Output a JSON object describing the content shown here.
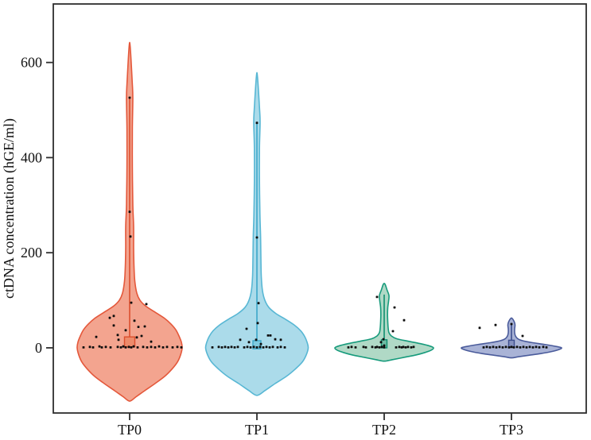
{
  "figure": {
    "background": "#ffffff",
    "frame_color": "#2e2e2e",
    "tick_color": "#2e2e2e",
    "text_color": "#111111"
  },
  "chart_data": {
    "type": "violin",
    "title": "",
    "xlabel": "",
    "ylabel": "ctDNA concentration (hGE/ml)",
    "yticks": [
      0,
      200,
      400,
      600
    ],
    "ylim": [
      -137,
      723
    ],
    "categories": [
      "TP0",
      "TP1",
      "TP2",
      "TP3"
    ],
    "grid": false,
    "legend": null,
    "point_color": "#0d0d0d",
    "groups": [
      {
        "label": "TP0",
        "edge_color": "#E4583B",
        "fill_color": "#F3A48F",
        "box": {
          "q1": 2,
          "q3": 23,
          "whisker_high": 526,
          "fill": "#ED8B6B",
          "edge": "#DC4F2E",
          "half_width": 6.5
        },
        "violin_profile": [
          [
            633,
            0.7
          ],
          [
            560,
            3.2
          ],
          [
            525,
            4.0
          ],
          [
            460,
            3.4
          ],
          [
            380,
            3.4
          ],
          [
            300,
            4.0
          ],
          [
            255,
            5.0
          ],
          [
            210,
            5.0
          ],
          [
            170,
            5.5
          ],
          [
            140,
            6.5
          ],
          [
            115,
            9.0
          ],
          [
            100,
            13.0
          ],
          [
            88,
            20.0
          ],
          [
            75,
            32.0
          ],
          [
            62,
            44.0
          ],
          [
            50,
            52.0
          ],
          [
            38,
            58.0
          ],
          [
            25,
            62.0
          ],
          [
            12,
            65.0
          ],
          [
            0,
            66.0
          ],
          [
            -15,
            64.0
          ],
          [
            -30,
            60.0
          ],
          [
            -45,
            53.0
          ],
          [
            -60,
            44.0
          ],
          [
            -75,
            32.0
          ],
          [
            -90,
            19.0
          ],
          [
            -103,
            8.0
          ],
          [
            -112,
            0.0
          ]
        ],
        "points": [
          [
            0,
            526
          ],
          [
            0,
            286
          ],
          [
            1,
            234
          ],
          [
            2,
            95
          ],
          [
            21,
            92
          ],
          [
            -20,
            67
          ],
          [
            -25,
            63
          ],
          [
            6,
            57
          ],
          [
            -20,
            47
          ],
          [
            19,
            45
          ],
          [
            11,
            44
          ],
          [
            -5,
            37
          ],
          [
            -15,
            27
          ],
          [
            15,
            25
          ],
          [
            -42,
            23
          ],
          [
            9,
            22
          ],
          [
            -14,
            17
          ],
          [
            27,
            13
          ],
          [
            -58,
            1
          ],
          [
            -50,
            2
          ],
          [
            -46,
            1
          ],
          [
            -38,
            3
          ],
          [
            -35,
            1
          ],
          [
            -30,
            2
          ],
          [
            -24,
            1
          ],
          [
            -15,
            2
          ],
          [
            -11,
            1
          ],
          [
            -8,
            3
          ],
          [
            -5,
            1
          ],
          [
            -1,
            2
          ],
          [
            2,
            1
          ],
          [
            5,
            3
          ],
          [
            10,
            1
          ],
          [
            17,
            2
          ],
          [
            22,
            1
          ],
          [
            27,
            2
          ],
          [
            32,
            1
          ],
          [
            37,
            3
          ],
          [
            42,
            1
          ],
          [
            47,
            2
          ],
          [
            54,
            1
          ],
          [
            60,
            2
          ],
          [
            65,
            1
          ]
        ]
      },
      {
        "label": "TP1",
        "edge_color": "#58B7D4",
        "fill_color": "#ABDBEA",
        "box": {
          "q1": -2,
          "q3": 15,
          "whisker_high": 473,
          "fill": "#7ECADF",
          "edge": "#3BA7C9",
          "half_width": 5
        },
        "violin_profile": [
          [
            570,
            0.7
          ],
          [
            500,
            3.4
          ],
          [
            473,
            4.0
          ],
          [
            420,
            3.2
          ],
          [
            350,
            3.2
          ],
          [
            280,
            3.8
          ],
          [
            235,
            4.6
          ],
          [
            190,
            5.0
          ],
          [
            150,
            5.5
          ],
          [
            120,
            7.0
          ],
          [
            100,
            10.0
          ],
          [
            85,
            15.0
          ],
          [
            72,
            24.0
          ],
          [
            60,
            36.0
          ],
          [
            48,
            47.0
          ],
          [
            36,
            55.0
          ],
          [
            24,
            60.0
          ],
          [
            12,
            63.0
          ],
          [
            0,
            64.5
          ],
          [
            -15,
            62.0
          ],
          [
            -30,
            57.0
          ],
          [
            -45,
            48.0
          ],
          [
            -60,
            37.0
          ],
          [
            -75,
            23.0
          ],
          [
            -90,
            10.0
          ],
          [
            -100,
            0.0
          ]
        ],
        "points": [
          [
            0,
            473
          ],
          [
            0,
            232
          ],
          [
            2,
            94
          ],
          [
            1,
            52
          ],
          [
            -13,
            40
          ],
          [
            14,
            26
          ],
          [
            17,
            26
          ],
          [
            23,
            18
          ],
          [
            30,
            17
          ],
          [
            -1,
            17
          ],
          [
            -21,
            17
          ],
          [
            -10,
            12
          ],
          [
            5,
            8
          ],
          [
            -56,
            1
          ],
          [
            -48,
            2
          ],
          [
            -44,
            1
          ],
          [
            -40,
            2
          ],
          [
            -36,
            1
          ],
          [
            -32,
            2
          ],
          [
            -28,
            1
          ],
          [
            -24,
            2
          ],
          [
            -16,
            1
          ],
          [
            -12,
            2
          ],
          [
            -8,
            1
          ],
          [
            -4,
            2
          ],
          [
            0,
            1
          ],
          [
            4,
            2
          ],
          [
            8,
            1
          ],
          [
            12,
            2
          ],
          [
            16,
            1
          ],
          [
            20,
            2
          ],
          [
            26,
            1
          ],
          [
            30,
            2
          ],
          [
            35,
            1
          ]
        ]
      },
      {
        "label": "TP2",
        "edge_color": "#179B7C",
        "fill_color": "#B0D9C6",
        "box": {
          "q1": 0,
          "q3": 17,
          "whisker_high": 112,
          "fill": "#6FBCA4",
          "edge": "#0F8F70",
          "half_width": 3.5
        },
        "violin_profile": [
          [
            134,
            1.0
          ],
          [
            122,
            3.5
          ],
          [
            110,
            6.0
          ],
          [
            98,
            5.5
          ],
          [
            85,
            4.5
          ],
          [
            70,
            4.2
          ],
          [
            55,
            4.5
          ],
          [
            42,
            5.0
          ],
          [
            32,
            6.0
          ],
          [
            25,
            9.0
          ],
          [
            19,
            16.0
          ],
          [
            14,
            30.0
          ],
          [
            9,
            45.0
          ],
          [
            4,
            57.0
          ],
          [
            0,
            62.0
          ],
          [
            -5,
            59.0
          ],
          [
            -10,
            51.0
          ],
          [
            -15,
            40.0
          ],
          [
            -20,
            25.0
          ],
          [
            -25,
            10.0
          ],
          [
            -28,
            0.0
          ]
        ],
        "points": [
          [
            -9,
            107
          ],
          [
            13,
            85
          ],
          [
            25,
            58
          ],
          [
            11,
            35
          ],
          [
            -1,
            18
          ],
          [
            -4,
            12
          ],
          [
            0,
            5
          ],
          [
            -45,
            1
          ],
          [
            -41,
            2
          ],
          [
            -36,
            1
          ],
          [
            -26,
            2
          ],
          [
            -23,
            1
          ],
          [
            -15,
            2
          ],
          [
            -11,
            1
          ],
          [
            -9,
            2
          ],
          [
            -6,
            1
          ],
          [
            -3,
            2
          ],
          [
            0,
            1
          ],
          [
            15,
            1
          ],
          [
            19,
            2
          ],
          [
            22,
            1
          ],
          [
            24,
            2
          ],
          [
            27,
            1
          ],
          [
            30,
            2
          ],
          [
            34,
            1
          ],
          [
            37,
            2
          ]
        ]
      },
      {
        "label": "TP3",
        "edge_color": "#4A5B9B",
        "fill_color": "#A9B3D6",
        "box": {
          "q1": 1,
          "q3": 16,
          "whisker_high": 52,
          "fill": "#8490BE",
          "edge": "#3D4E8E",
          "half_width": 3.5
        },
        "violin_profile": [
          [
            62,
            0.8
          ],
          [
            55,
            3.5
          ],
          [
            48,
            4.5
          ],
          [
            40,
            4.0
          ],
          [
            32,
            4.0
          ],
          [
            25,
            5.0
          ],
          [
            19,
            8.0
          ],
          [
            15,
            14.0
          ],
          [
            11,
            26.0
          ],
          [
            7,
            42.0
          ],
          [
            3,
            56.0
          ],
          [
            0,
            63.0
          ],
          [
            -4,
            59.0
          ],
          [
            -8,
            50.0
          ],
          [
            -12,
            37.0
          ],
          [
            -16,
            20.0
          ],
          [
            -19,
            8.0
          ],
          [
            -21,
            0.0
          ]
        ],
        "points": [
          [
            0,
            50
          ],
          [
            -20,
            48
          ],
          [
            -40,
            42
          ],
          [
            14,
            25
          ],
          [
            -35,
            1
          ],
          [
            -31,
            2
          ],
          [
            -27,
            1
          ],
          [
            -23,
            2
          ],
          [
            -19,
            1
          ],
          [
            -15,
            2
          ],
          [
            -11,
            1
          ],
          [
            -7,
            2
          ],
          [
            -3,
            1
          ],
          [
            0,
            2
          ],
          [
            3,
            1
          ],
          [
            7,
            2
          ],
          [
            11,
            1
          ],
          [
            15,
            2
          ],
          [
            19,
            1
          ],
          [
            23,
            2
          ],
          [
            27,
            1
          ],
          [
            31,
            2
          ],
          [
            35,
            1
          ],
          [
            40,
            2
          ],
          [
            44,
            1
          ]
        ]
      }
    ]
  }
}
